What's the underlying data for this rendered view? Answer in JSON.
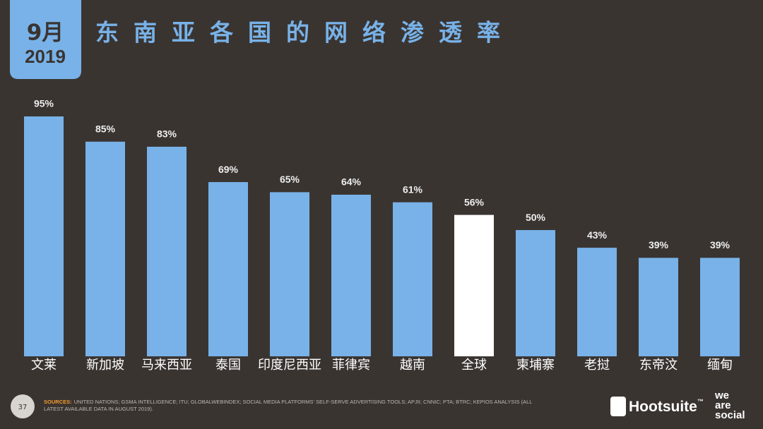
{
  "badge": {
    "month": "9月",
    "year": "2019"
  },
  "chart_data": {
    "type": "bar",
    "title": "东南亚各国的网络渗透率",
    "categories": [
      "文莱",
      "新加坡",
      "马来西亚",
      "泰国",
      "印度尼西亚",
      "菲律宾",
      "越南",
      "全球",
      "柬埔寨",
      "老挝",
      "东帝汶",
      "缅甸"
    ],
    "values": [
      95,
      85,
      83,
      69,
      65,
      64,
      61,
      56,
      50,
      43,
      39,
      39
    ],
    "value_labels": [
      "95%",
      "85%",
      "83%",
      "69%",
      "65%",
      "64%",
      "61%",
      "56%",
      "50%",
      "43%",
      "39%",
      "39%"
    ],
    "colors": [
      "#78b2e8",
      "#78b2e8",
      "#78b2e8",
      "#78b2e8",
      "#78b2e8",
      "#78b2e8",
      "#78b2e8",
      "#ffffff",
      "#78b2e8",
      "#78b2e8",
      "#78b2e8",
      "#78b2e8"
    ]
  },
  "footer": {
    "page": "37",
    "sources_label": "SOURCES:",
    "sources_text": "UNITED NATIONS; GSMA INTELLIGENCE; ITU; GLOBALWEBINDEX; SOCIAL MEDIA PLATFORMS' SELF-SERVE ADVERTISING TOOLS; APJII; CNNIC; PTA; BTRC; KEPIOS ANALYSIS (ALL",
    "sources_text2": "LATEST AVAILABLE DATA IN AUGUST 2019).",
    "brand1": "Hootsuite",
    "brand1_mark": "™",
    "brand2_line1": "we",
    "brand2_line2": "are",
    "brand2_line3": "social"
  }
}
